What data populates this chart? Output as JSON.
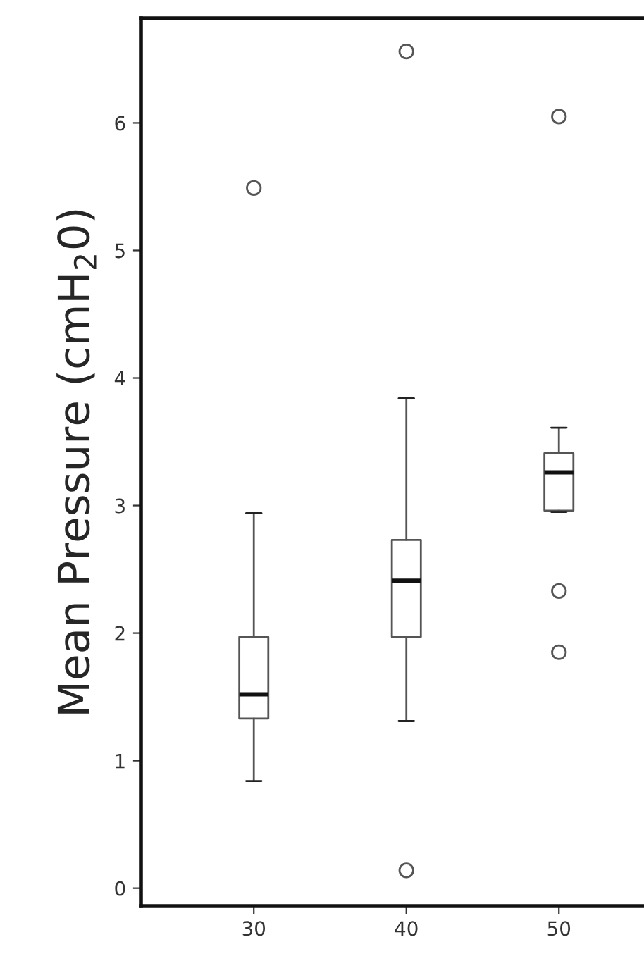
{
  "chart_data": {
    "type": "box",
    "ylabel": "Mean Pressure (cmH$_{2}$0)",
    "categories": [
      "30",
      "40",
      "50"
    ],
    "boxes": [
      {
        "low": 0.84,
        "q1": 1.33,
        "median": 1.52,
        "q3": 1.97,
        "high": 2.94,
        "outliers": [
          5.49
        ]
      },
      {
        "low": 1.31,
        "q1": 1.97,
        "median": 2.41,
        "q3": 2.73,
        "high": 3.84,
        "outliers": [
          0.14,
          6.56
        ]
      },
      {
        "low": 2.95,
        "q1": 2.96,
        "median": 3.26,
        "q3": 3.41,
        "high": 3.61,
        "outliers": [
          2.33,
          1.85,
          6.05
        ]
      }
    ],
    "color": "#555555",
    "ylim": [
      -0.14,
      6.82
    ],
    "yticks": [
      0,
      1,
      2,
      3,
      4,
      5,
      6
    ],
    "grid": false,
    "marker": "circle"
  }
}
